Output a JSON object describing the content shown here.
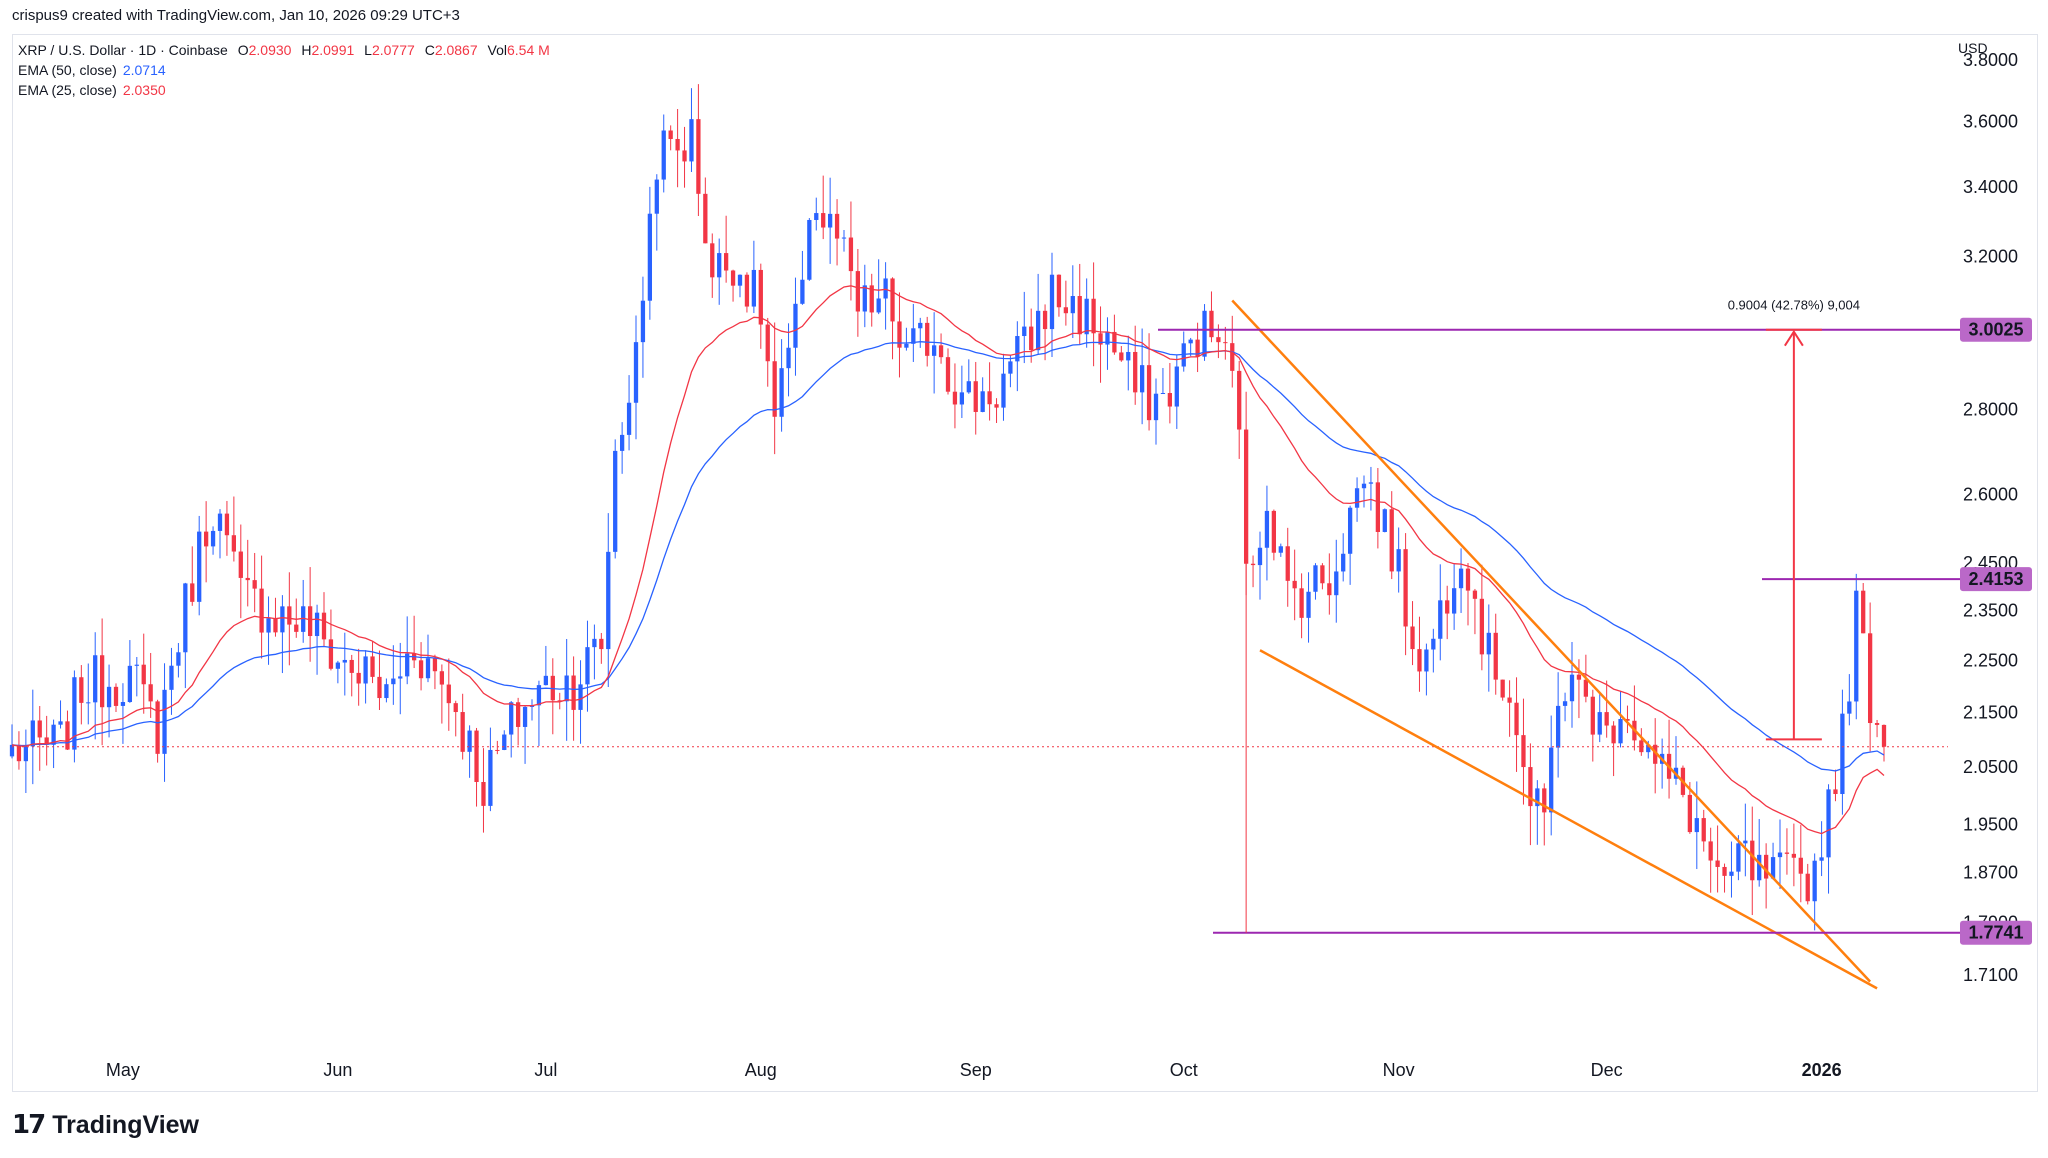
{
  "credit": "crispus9 created with TradingView.com, Jan 10, 2026 09:29 UTC+3",
  "legend": {
    "symbol": "XRP / U.S. Dollar · 1D · Coinbase",
    "o_label": "O",
    "o_value": "2.0930",
    "h_label": "H",
    "h_value": "2.0991",
    "l_label": "L",
    "l_value": "2.0777",
    "c_label": "C",
    "c_value": "2.0867",
    "vol_label": "Vol",
    "vol_value": "6.54 M",
    "ema50_label": "EMA (50, close)",
    "ema50_value": "2.0714",
    "ema25_label": "EMA (25, close)",
    "ema25_value": "2.0350"
  },
  "currency": "USD",
  "brand": "TradingView",
  "colors": {
    "up": "#2962ff",
    "down": "#f23645",
    "ema50": "#2962ff",
    "ema25": "#f23645",
    "wedge": "#ff7f0e",
    "level": "#9c27b0",
    "badge": "#ba68c8",
    "measure": "#f23645"
  },
  "chart_data": {
    "type": "candlestick",
    "title": "XRP / U.S. Dollar · 1D · Coinbase",
    "xlabel": "",
    "ylabel": "",
    "ylim": [
      1.67,
      3.9
    ],
    "log_scale": true,
    "y_ticks": [
      "3.8000",
      "3.6000",
      "3.4000",
      "3.2000",
      "2.8000",
      "2.6000",
      "2.4500",
      "2.3500",
      "2.2500",
      "2.1500",
      "2.0500",
      "1.9500",
      "1.8700",
      "1.7900",
      "1.7100"
    ],
    "x_ticks": [
      {
        "label": "May",
        "date": "2025-05-01",
        "bold": false
      },
      {
        "label": "Jun",
        "date": "2025-06-01",
        "bold": false
      },
      {
        "label": "Jul",
        "date": "2025-07-01",
        "bold": false
      },
      {
        "label": "Aug",
        "date": "2025-08-01",
        "bold": false
      },
      {
        "label": "Sep",
        "date": "2025-09-01",
        "bold": false
      },
      {
        "label": "Oct",
        "date": "2025-10-01",
        "bold": false
      },
      {
        "label": "Nov",
        "date": "2025-11-01",
        "bold": false
      },
      {
        "label": "Dec",
        "date": "2025-12-01",
        "bold": false
      },
      {
        "label": "2026",
        "date": "2026-01-01",
        "bold": true
      }
    ],
    "date_range": [
      "2025-04-15",
      "2026-01-10"
    ],
    "waypoints": [
      [
        "2025-04-15",
        2.08
      ],
      [
        "2025-04-22",
        2.09
      ],
      [
        "2025-04-25",
        2.2
      ],
      [
        "2025-05-02",
        2.22
      ],
      [
        "2025-05-06",
        2.12
      ],
      [
        "2025-05-12",
        2.48
      ],
      [
        "2025-05-14",
        2.58
      ],
      [
        "2025-05-18",
        2.38
      ],
      [
        "2025-05-24",
        2.34
      ],
      [
        "2025-05-28",
        2.32
      ],
      [
        "2025-06-01",
        2.25
      ],
      [
        "2025-06-05",
        2.22
      ],
      [
        "2025-06-08",
        2.18
      ],
      [
        "2025-06-12",
        2.28
      ],
      [
        "2025-06-17",
        2.19
      ],
      [
        "2025-06-22",
        2.02
      ],
      [
        "2025-06-24",
        2.07
      ],
      [
        "2025-06-27",
        2.15
      ],
      [
        "2025-07-01",
        2.2
      ],
      [
        "2025-07-05",
        2.21
      ],
      [
        "2025-07-09",
        2.28
      ],
      [
        "2025-07-11",
        2.7
      ],
      [
        "2025-07-14",
        2.92
      ],
      [
        "2025-07-17",
        3.5
      ],
      [
        "2025-07-20",
        3.52
      ],
      [
        "2025-07-22",
        3.55
      ],
      [
        "2025-07-25",
        3.15
      ],
      [
        "2025-07-28",
        3.2
      ],
      [
        "2025-08-01",
        3.05
      ],
      [
        "2025-08-03",
        2.77
      ],
      [
        "2025-08-06",
        3.0
      ],
      [
        "2025-08-08",
        3.35
      ],
      [
        "2025-08-12",
        3.25
      ],
      [
        "2025-08-15",
        3.05
      ],
      [
        "2025-08-19",
        3.08
      ],
      [
        "2025-08-22",
        2.93
      ],
      [
        "2025-08-26",
        3.0
      ],
      [
        "2025-08-30",
        2.82
      ],
      [
        "2025-09-04",
        2.85
      ],
      [
        "2025-09-08",
        2.95
      ],
      [
        "2025-09-12",
        3.1
      ],
      [
        "2025-09-16",
        3.05
      ],
      [
        "2025-09-20",
        2.98
      ],
      [
        "2025-09-24",
        2.85
      ],
      [
        "2025-09-28",
        2.82
      ],
      [
        "2025-10-03",
        3.0
      ],
      [
        "2025-10-06",
        2.98
      ],
      [
        "2025-10-09",
        2.8
      ],
      [
        "2025-10-10",
        2.4
      ],
      [
        "2025-10-13",
        2.6
      ],
      [
        "2025-10-16",
        2.38
      ],
      [
        "2025-10-19",
        2.4
      ],
      [
        "2025-10-22",
        2.42
      ],
      [
        "2025-10-27",
        2.65
      ],
      [
        "2025-10-31",
        2.48
      ],
      [
        "2025-11-03",
        2.3
      ],
      [
        "2025-11-05",
        2.25
      ],
      [
        "2025-11-08",
        2.4
      ],
      [
        "2025-11-10",
        2.5
      ],
      [
        "2025-11-14",
        2.25
      ],
      [
        "2025-11-17",
        2.2
      ],
      [
        "2025-11-20",
        1.98
      ],
      [
        "2025-11-22",
        1.95
      ],
      [
        "2025-11-24",
        2.2
      ],
      [
        "2025-11-28",
        2.18
      ],
      [
        "2025-12-01",
        2.1
      ],
      [
        "2025-12-03",
        2.18
      ],
      [
        "2025-12-08",
        2.05
      ],
      [
        "2025-12-12",
        2.0
      ],
      [
        "2025-12-15",
        1.92
      ],
      [
        "2025-12-18",
        1.82
      ],
      [
        "2025-12-20",
        1.9
      ],
      [
        "2025-12-23",
        1.86
      ],
      [
        "2025-12-28",
        1.86
      ],
      [
        "2025-12-31",
        1.87
      ],
      [
        "2026-01-02",
        2.0
      ],
      [
        "2026-01-04",
        2.1
      ],
      [
        "2026-01-06",
        2.35
      ],
      [
        "2026-01-08",
        2.18
      ],
      [
        "2026-01-10",
        2.0867
      ]
    ],
    "ema50": {
      "name": "EMA (50, close)",
      "last": 2.0714
    },
    "ema25": {
      "name": "EMA (25, close)",
      "last": 2.035
    },
    "levels": [
      {
        "label": "3.0025",
        "value": 3.0025
      },
      {
        "label": "2.4153",
        "value": 2.4153
      },
      {
        "label": "1.7741",
        "value": 1.7741
      }
    ],
    "current_price": 2.0867,
    "wedge": {
      "upper": [
        [
          "2025-10-08",
          3.08
        ],
        [
          "2026-01-08",
          1.7
        ]
      ],
      "lower": [
        [
          "2025-10-12",
          2.27
        ],
        [
          "2026-01-09",
          1.69
        ]
      ]
    },
    "measure": {
      "text": "0.9004 (42.78%) 9,004",
      "from": {
        "date": "2025-12-28",
        "value": 2.1
      },
      "to": {
        "date": "2025-12-28",
        "value": 3.0025
      }
    }
  }
}
